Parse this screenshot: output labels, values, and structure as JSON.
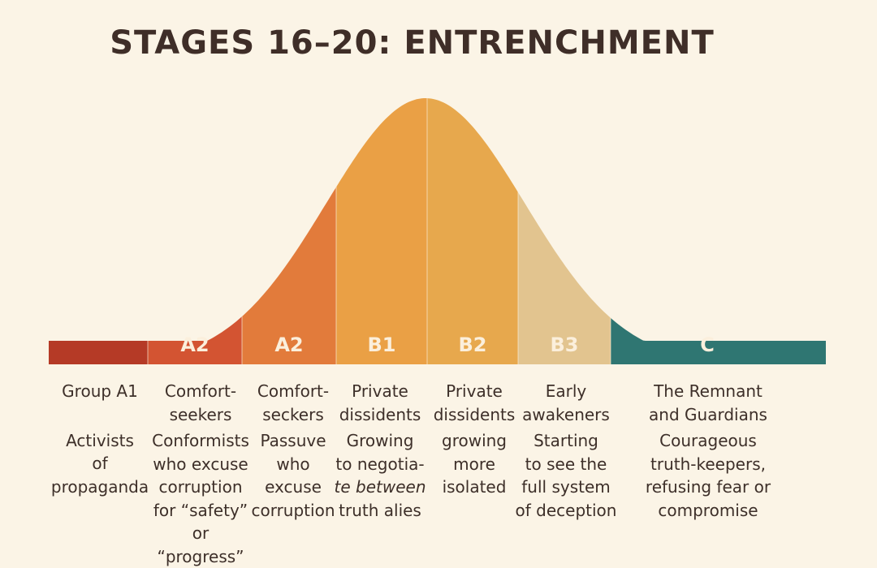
{
  "title": "STAGES 16–20: ENTRENCHMENT",
  "colors": {
    "background": "#fbf4e6",
    "text": "#3d2f29",
    "a1": "#b53a26",
    "a2_first": "#d35432",
    "a2_second": "#e27b3b",
    "b1": "#eaa045",
    "b2": "#e7a84d",
    "b3": "#e2c48f",
    "c": "#2f7672",
    "segment_label": "#fbefdc"
  },
  "segments": [
    {
      "id": "A1",
      "label": ""
    },
    {
      "id": "A2",
      "label": "A2"
    },
    {
      "id": "A2b",
      "label": "A2"
    },
    {
      "id": "B1",
      "label": "B1"
    },
    {
      "id": "B2",
      "label": "B2"
    },
    {
      "id": "B3",
      "label": "B3"
    },
    {
      "id": "C",
      "label": "C"
    }
  ],
  "columns": [
    {
      "name": [
        "Group A1"
      ],
      "desc": [
        "Activists",
        "of",
        "propaganda"
      ]
    },
    {
      "name": [
        "Comfort-",
        "seekers"
      ],
      "desc": [
        "Conformists",
        "who excuse",
        "corruption",
        "for “safety”",
        "or “progress”"
      ]
    },
    {
      "name": [
        "Comfort-",
        "seckers"
      ],
      "desc": [
        "Passuve",
        "who",
        "excuse",
        "corruption"
      ]
    },
    {
      "name": [
        "Private",
        "dissidents"
      ],
      "desc": [
        "Growing",
        "to negotia-",
        "te between",
        "truth alies"
      ]
    },
    {
      "name": [
        "Private",
        "dissidents"
      ],
      "desc": [
        "growing",
        "more",
        "isolated"
      ]
    },
    {
      "name": [
        "Early",
        "awakeners"
      ],
      "desc": [
        "Starting",
        "to see the",
        "full system",
        "of deception"
      ]
    },
    {
      "name": [
        "The Remnant",
        "and Guardians"
      ],
      "desc": [
        "Courageous",
        "truth-keepers,",
        "refusing fear or",
        "compromise"
      ]
    }
  ]
}
